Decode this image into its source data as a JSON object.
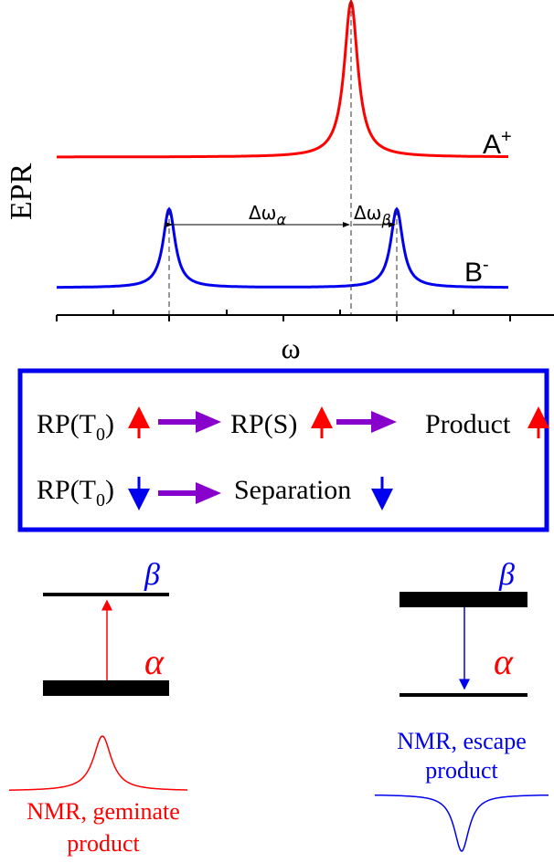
{
  "colors": {
    "red": "#ff0000",
    "blue": "#0000ee",
    "purple": "#8800cc",
    "black": "#000000"
  },
  "epr": {
    "ylabel": "EPR",
    "xlabel": "ω",
    "label_a": "A",
    "label_a_sup": "+",
    "label_b": "B",
    "label_b_sup": "-",
    "delta_alpha": "Δω",
    "delta_alpha_sub": "α",
    "delta_beta": "Δω",
    "delta_beta_sub": "β"
  },
  "scheme": {
    "row1": {
      "item1": "RP(T",
      "item1_sub": "0",
      "item1_close": ")",
      "item2": "RP(S)",
      "item3": "Product",
      "spin": "up"
    },
    "row2": {
      "item1": "RP(T",
      "item1_sub": "0",
      "item1_close": ")",
      "item2": "Separation",
      "spin": "down"
    }
  },
  "levels": {
    "beta": "β",
    "alpha": "α"
  },
  "nmr": {
    "geminate_line1": "NMR, geminate",
    "geminate_line2": "product",
    "escape_line1": "NMR, escape",
    "escape_line2": "product"
  }
}
